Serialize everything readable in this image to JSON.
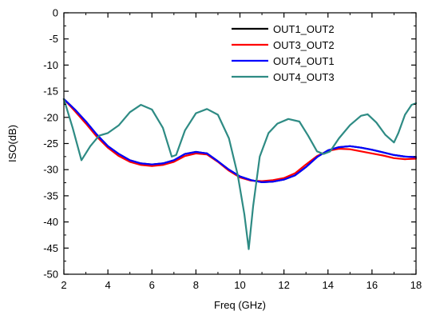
{
  "chart_data": {
    "type": "line",
    "xlabel": "Freq (GHz)",
    "ylabel": "ISO(dB)",
    "xlim": [
      2,
      18
    ],
    "ylim": [
      -50,
      0
    ],
    "xticks": [
      2,
      4,
      6,
      8,
      10,
      12,
      14,
      16,
      18
    ],
    "yticks": [
      0,
      -5,
      -10,
      -15,
      -20,
      -25,
      -30,
      -35,
      -40,
      -45,
      -50
    ],
    "x_tick_labels": [
      "2",
      "4",
      "6",
      "8",
      "10",
      "12",
      "14",
      "16",
      "18"
    ],
    "y_tick_labels": [
      "0",
      "-5",
      "-10",
      "-15",
      "-20",
      "-25",
      "-30",
      "-35",
      "-40",
      "-45",
      "-50"
    ],
    "grid": false,
    "legend_position": "top-right",
    "series": [
      {
        "name": "OUT1_OUT2",
        "color": "#000000",
        "x": [
          2.0,
          2.5,
          3.0,
          3.5,
          4.0,
          4.5,
          5.0,
          5.5,
          6.0,
          6.5,
          7.0,
          7.5,
          8.0,
          8.5,
          9.0,
          9.5,
          10.0,
          10.5,
          11.0,
          11.5,
          12.0,
          12.5,
          13.0,
          13.5,
          14.0,
          14.5,
          15.0,
          15.5,
          16.0,
          16.5,
          17.0,
          17.5,
          18.0
        ],
        "y": [
          -16.5,
          -18.5,
          -20.8,
          -23.3,
          -25.5,
          -27.0,
          -28.2,
          -28.8,
          -29.0,
          -28.8,
          -28.2,
          -27.0,
          -26.6,
          -26.9,
          -28.4,
          -30.0,
          -31.3,
          -32.0,
          -32.4,
          -32.3,
          -31.9,
          -31.1,
          -29.5,
          -27.6,
          -26.3,
          -25.7,
          -25.5,
          -25.8,
          -26.2,
          -26.7,
          -27.2,
          -27.5,
          -27.6
        ]
      },
      {
        "name": "OUT3_OUT2",
        "color": "#ff0000",
        "x": [
          2.0,
          2.5,
          3.0,
          3.5,
          4.0,
          4.5,
          5.0,
          5.5,
          6.0,
          6.5,
          7.0,
          7.5,
          8.0,
          8.5,
          9.0,
          9.5,
          10.0,
          10.5,
          11.0,
          11.5,
          12.0,
          12.5,
          13.0,
          13.5,
          14.0,
          14.5,
          15.0,
          15.5,
          16.0,
          16.5,
          17.0,
          17.5,
          18.0
        ],
        "y": [
          -16.5,
          -18.8,
          -21.2,
          -23.7,
          -25.8,
          -27.4,
          -28.5,
          -29.1,
          -29.3,
          -29.1,
          -28.5,
          -27.4,
          -26.9,
          -27.1,
          -28.5,
          -30.2,
          -31.5,
          -32.1,
          -32.2,
          -32.0,
          -31.6,
          -30.7,
          -29.0,
          -27.4,
          -26.4,
          -26.0,
          -26.1,
          -26.5,
          -26.9,
          -27.3,
          -27.8,
          -28.0,
          -27.9
        ]
      },
      {
        "name": "OUT4_OUT1",
        "color": "#0000ff",
        "x": [
          2.0,
          2.5,
          3.0,
          3.5,
          4.0,
          4.5,
          5.0,
          5.5,
          6.0,
          6.5,
          7.0,
          7.5,
          8.0,
          8.5,
          9.0,
          9.5,
          10.0,
          10.5,
          11.0,
          11.5,
          12.0,
          12.5,
          13.0,
          13.5,
          14.0,
          14.5,
          15.0,
          15.5,
          16.0,
          16.5,
          17.0,
          17.5,
          18.0
        ],
        "y": [
          -16.5,
          -18.5,
          -20.8,
          -23.3,
          -25.5,
          -27.0,
          -28.2,
          -28.8,
          -29.0,
          -28.8,
          -28.2,
          -27.0,
          -26.6,
          -26.9,
          -28.4,
          -30.0,
          -31.3,
          -32.0,
          -32.4,
          -32.3,
          -31.9,
          -31.1,
          -29.5,
          -27.6,
          -26.3,
          -25.7,
          -25.5,
          -25.8,
          -26.2,
          -26.7,
          -27.2,
          -27.5,
          -27.6
        ]
      },
      {
        "name": "OUT4_OUT3",
        "color": "#2e8b84",
        "x": [
          2.0,
          2.4,
          2.8,
          3.2,
          3.6,
          4.0,
          4.5,
          5.0,
          5.5,
          6.0,
          6.5,
          6.9,
          7.1,
          7.5,
          8.0,
          8.5,
          9.0,
          9.5,
          9.9,
          10.2,
          10.4,
          10.6,
          10.9,
          11.3,
          11.7,
          12.2,
          12.7,
          13.1,
          13.5,
          13.8,
          14.1,
          14.5,
          15.0,
          15.5,
          15.8,
          16.2,
          16.6,
          17.0,
          17.2,
          17.5,
          17.8,
          18.0
        ],
        "y": [
          -16.5,
          -22.0,
          -28.2,
          -25.5,
          -23.5,
          -23.0,
          -21.5,
          -19.0,
          -17.6,
          -18.5,
          -22.0,
          -27.5,
          -27.2,
          -22.5,
          -19.2,
          -18.4,
          -19.5,
          -24.0,
          -31.0,
          -38.5,
          -45.2,
          -37.0,
          -27.5,
          -23.0,
          -21.2,
          -20.3,
          -20.8,
          -23.5,
          -26.5,
          -27.0,
          -26.5,
          -24.0,
          -21.5,
          -19.7,
          -19.4,
          -21.0,
          -23.3,
          -24.8,
          -23.0,
          -19.5,
          -17.6,
          -17.3
        ]
      }
    ]
  }
}
